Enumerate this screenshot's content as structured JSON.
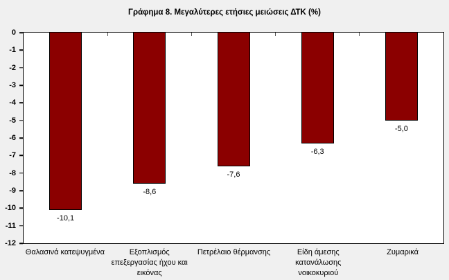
{
  "chart_data": {
    "type": "bar",
    "title": "Γράφημα 8. Μεγαλύτερες ετήσιες μειώσεις ΔΤΚ (%)",
    "categories": [
      "Θαλασινά κατεψυγμένα",
      "Εξοπλισμός επεξεργασίας ήχου και εικόνας",
      "Πετρέλαιο θέρμανσης",
      "Είδη άμεσης κατανάλωσης νοικοκυριού",
      "Ζυμαρικά"
    ],
    "values": [
      -10.1,
      -8.6,
      -7.6,
      -6.3,
      -5.0
    ],
    "value_labels": [
      "-10,1",
      "-8,6",
      "-7,6",
      "-6,3",
      "-5,0"
    ],
    "xlabel": "",
    "ylabel": "",
    "ylim": [
      0,
      -12
    ],
    "ytick_step": -1,
    "ytick_labels": [
      "0",
      "-1",
      "-2",
      "-3",
      "-4",
      "-5",
      "-6",
      "-7",
      "-8",
      "-9",
      "-10",
      "-11",
      "-12"
    ],
    "grid": false,
    "legend": null,
    "orientation": "vertical-from-zero-top",
    "bar_color": "#8B0000",
    "bar_border_color": "#000000"
  },
  "colors": {
    "page_bg": "#f0f0f0",
    "plot_bg": "#ffffff",
    "axis": "#000000",
    "text": "#000000"
  }
}
